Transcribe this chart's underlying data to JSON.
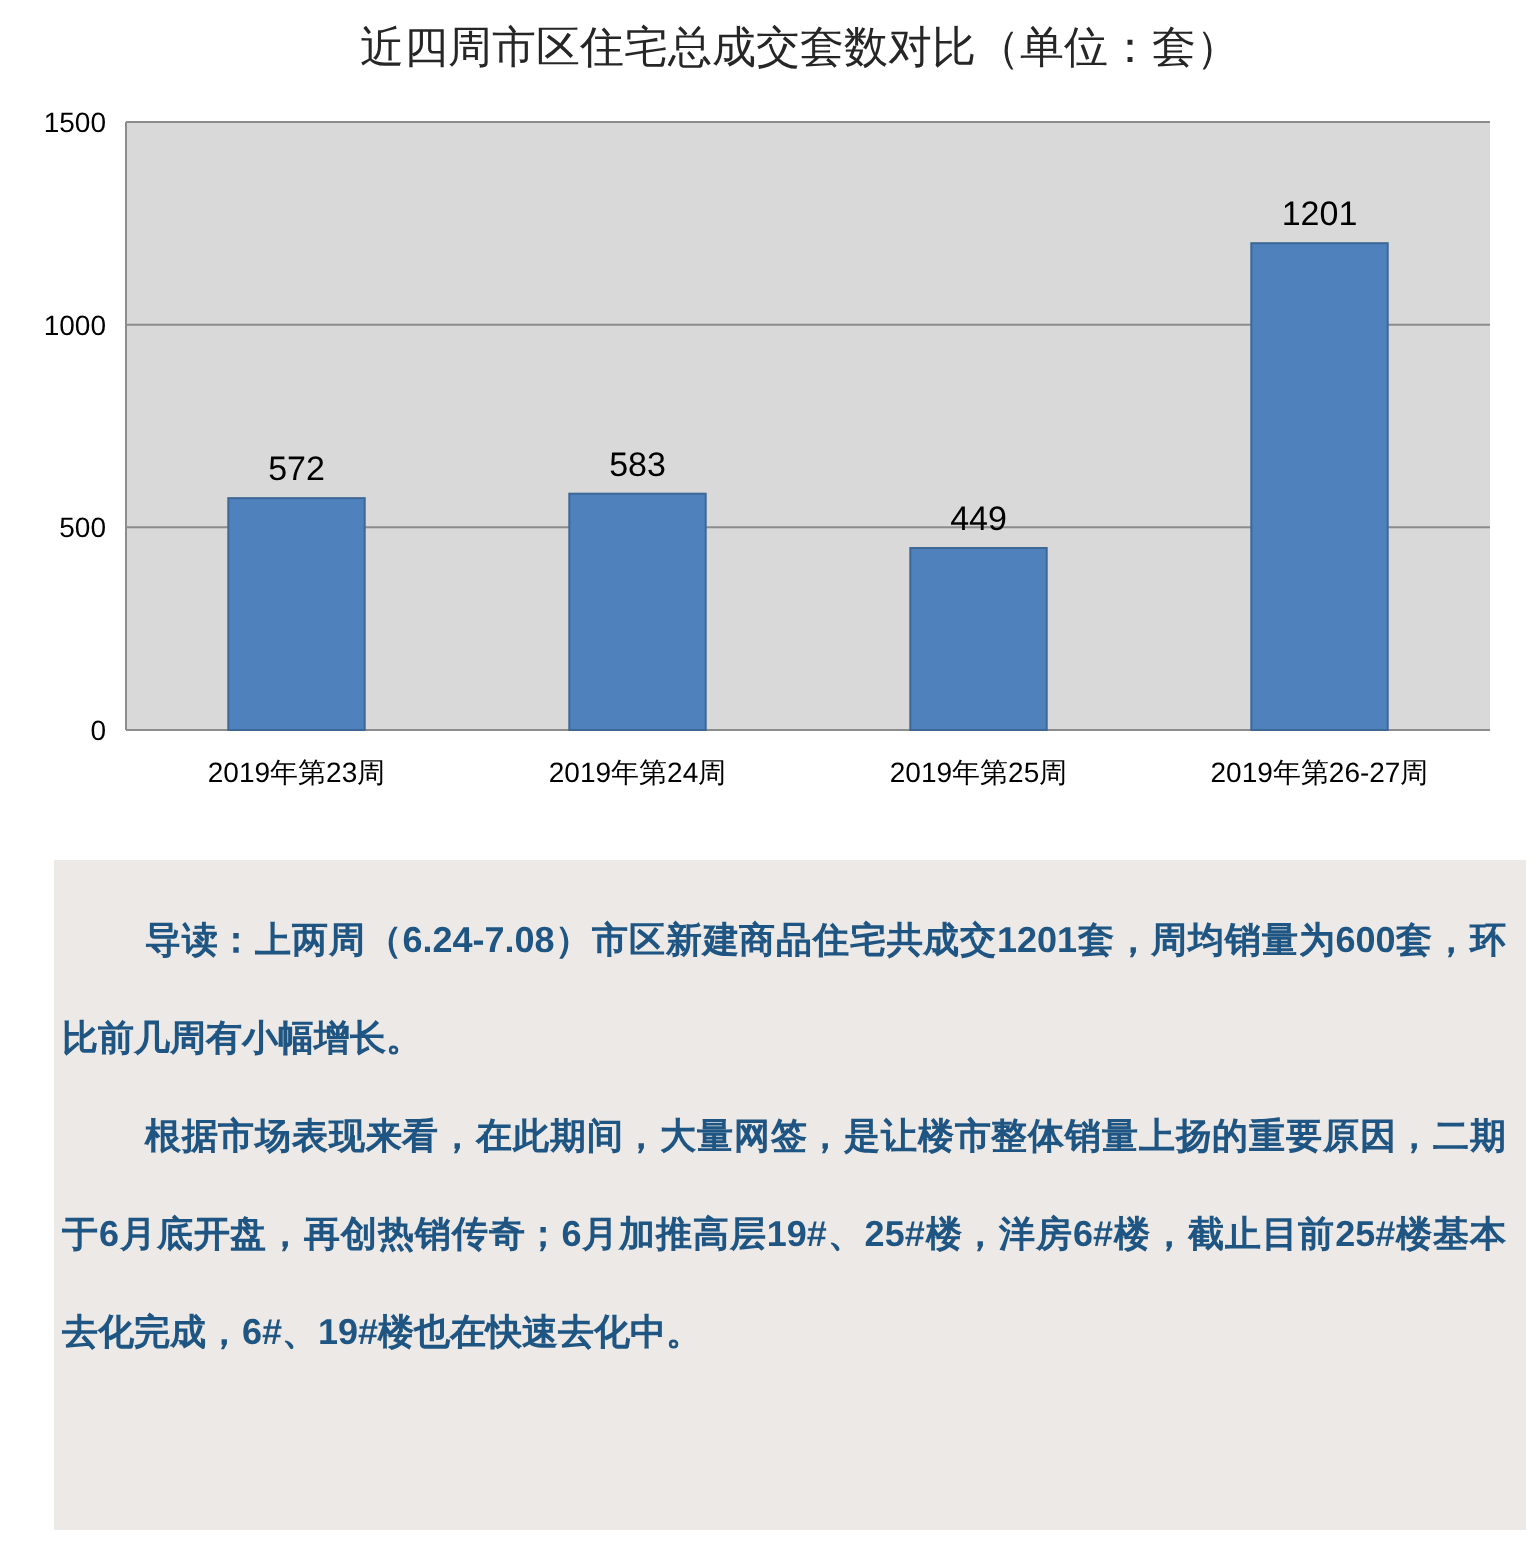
{
  "chart_data": {
    "type": "bar",
    "title": "近四周市区住宅总成交套数对比（单位：套）",
    "categories": [
      "2019年第23周",
      "2019年第24周",
      "2019年第25周",
      "2019年第26-27周"
    ],
    "values": [
      572,
      583,
      449,
      1201
    ],
    "color": "#4f81bd",
    "ylim": [
      0,
      1500
    ],
    "yticks": [
      0,
      500,
      1000,
      1500
    ],
    "grid": "y",
    "data_labels": true,
    "annotations": [
      "导读：上两周（6.24-7.08）市区新建商品住宅共成交1201套，周均销量为600套，环比前几周有小幅增长。",
      "根据市场表现来看，在此期间，大量网签，是让楼市整体销量上扬的重要原因，二期于6月底开盘，再创热销传奇；6月加推高层19#、25#楼，洋房6#楼，截止目前25#楼基本去化完成，6#、19#楼也在快速去化中。"
    ]
  }
}
